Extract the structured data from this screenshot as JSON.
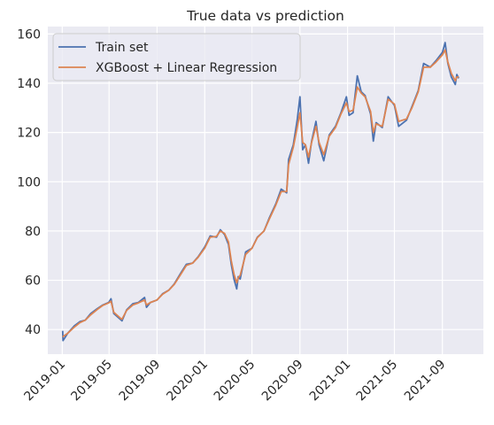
{
  "chart_data": {
    "type": "line",
    "title": "True data vs prediction",
    "xlabel": "",
    "ylabel": "",
    "xlim": [
      "2018-11-25",
      "2021-12-15"
    ],
    "ylim": [
      30,
      163
    ],
    "x_ticks": [
      "2019-01",
      "2019-05",
      "2019-09",
      "2020-01",
      "2020-05",
      "2020-09",
      "2021-01",
      "2021-05",
      "2021-09"
    ],
    "y_ticks": [
      40,
      60,
      80,
      100,
      120,
      140,
      160
    ],
    "grid": true,
    "legend_position": "top-left",
    "series": [
      {
        "name": "Train set",
        "color": "#4c72b0",
        "points": [
          [
            "2019-01-02",
            39.5
          ],
          [
            "2019-01-03",
            35.5
          ],
          [
            "2019-01-15",
            38.5
          ],
          [
            "2019-02-01",
            41.5
          ],
          [
            "2019-02-15",
            43.2
          ],
          [
            "2019-03-01",
            43.8
          ],
          [
            "2019-03-15",
            46.5
          ],
          [
            "2019-04-01",
            48.5
          ],
          [
            "2019-04-15",
            50.0
          ],
          [
            "2019-04-30",
            51.0
          ],
          [
            "2019-05-06",
            52.5
          ],
          [
            "2019-05-13",
            46.5
          ],
          [
            "2019-05-31",
            44.0
          ],
          [
            "2019-06-03",
            43.5
          ],
          [
            "2019-06-15",
            48.0
          ],
          [
            "2019-07-01",
            50.5
          ],
          [
            "2019-07-15",
            51.0
          ],
          [
            "2019-07-31",
            53.0
          ],
          [
            "2019-08-05",
            49.0
          ],
          [
            "2019-08-15",
            51.0
          ],
          [
            "2019-09-01",
            52.0
          ],
          [
            "2019-09-15",
            54.5
          ],
          [
            "2019-10-01",
            56.0
          ],
          [
            "2019-10-15",
            58.5
          ],
          [
            "2019-11-01",
            63.0
          ],
          [
            "2019-11-15",
            66.5
          ],
          [
            "2019-12-01",
            67.0
          ],
          [
            "2019-12-15",
            69.5
          ],
          [
            "2020-01-01",
            73.5
          ],
          [
            "2020-01-15",
            78.0
          ],
          [
            "2020-01-31",
            77.5
          ],
          [
            "2020-02-10",
            80.5
          ],
          [
            "2020-02-21",
            78.5
          ],
          [
            "2020-03-02",
            74.5
          ],
          [
            "2020-03-09",
            66.5
          ],
          [
            "2020-03-16",
            60.5
          ],
          [
            "2020-03-23",
            56.5
          ],
          [
            "2020-03-27",
            61.5
          ],
          [
            "2020-04-01",
            60.5
          ],
          [
            "2020-04-15",
            71.5
          ],
          [
            "2020-05-01",
            73.0
          ],
          [
            "2020-05-15",
            77.5
          ],
          [
            "2020-06-01",
            80.0
          ],
          [
            "2020-06-15",
            85.5
          ],
          [
            "2020-07-01",
            91.0
          ],
          [
            "2020-07-15",
            97.0
          ],
          [
            "2020-07-29",
            95.5
          ],
          [
            "2020-08-03",
            109.0
          ],
          [
            "2020-08-15",
            115.0
          ],
          [
            "2020-08-25",
            125.0
          ],
          [
            "2020-09-01",
            134.5
          ],
          [
            "2020-09-08",
            113.0
          ],
          [
            "2020-09-15",
            115.0
          ],
          [
            "2020-09-23",
            107.5
          ],
          [
            "2020-10-01",
            116.5
          ],
          [
            "2020-10-12",
            124.5
          ],
          [
            "2020-10-20",
            115.0
          ],
          [
            "2020-11-01",
            108.5
          ],
          [
            "2020-11-15",
            119.0
          ],
          [
            "2020-12-01",
            122.5
          ],
          [
            "2020-12-15",
            128.0
          ],
          [
            "2020-12-29",
            134.5
          ],
          [
            "2021-01-05",
            127.0
          ],
          [
            "2021-01-15",
            128.0
          ],
          [
            "2021-01-26",
            143.0
          ],
          [
            "2021-02-05",
            136.5
          ],
          [
            "2021-02-15",
            135.0
          ],
          [
            "2021-03-01",
            127.5
          ],
          [
            "2021-03-08",
            116.5
          ],
          [
            "2021-03-15",
            124.0
          ],
          [
            "2021-03-31",
            122.0
          ],
          [
            "2021-04-15",
            134.5
          ],
          [
            "2021-05-01",
            131.0
          ],
          [
            "2021-05-12",
            122.5
          ],
          [
            "2021-06-01",
            125.0
          ],
          [
            "2021-06-15",
            130.5
          ],
          [
            "2021-07-01",
            137.0
          ],
          [
            "2021-07-15",
            148.0
          ],
          [
            "2021-08-01",
            146.5
          ],
          [
            "2021-08-15",
            149.0
          ],
          [
            "2021-09-01",
            152.5
          ],
          [
            "2021-09-08",
            156.5
          ],
          [
            "2021-09-15",
            148.0
          ],
          [
            "2021-09-24",
            142.5
          ],
          [
            "2021-10-04",
            139.5
          ],
          [
            "2021-10-08",
            143.5
          ],
          [
            "2021-10-13",
            142.0
          ]
        ]
      },
      {
        "name": "XGBoost + Linear Regression",
        "color": "#dd8452",
        "points": [
          [
            "2019-01-02",
            37.0
          ],
          [
            "2019-01-15",
            38.5
          ],
          [
            "2019-02-01",
            41.0
          ],
          [
            "2019-02-15",
            42.8
          ],
          [
            "2019-03-01",
            43.8
          ],
          [
            "2019-03-15",
            46.0
          ],
          [
            "2019-04-01",
            48.2
          ],
          [
            "2019-04-15",
            49.8
          ],
          [
            "2019-04-30",
            50.8
          ],
          [
            "2019-05-06",
            51.5
          ],
          [
            "2019-05-13",
            47.0
          ],
          [
            "2019-05-31",
            44.5
          ],
          [
            "2019-06-03",
            44.2
          ],
          [
            "2019-06-15",
            47.8
          ],
          [
            "2019-07-01",
            50.0
          ],
          [
            "2019-07-15",
            50.8
          ],
          [
            "2019-07-31",
            52.0
          ],
          [
            "2019-08-05",
            50.0
          ],
          [
            "2019-08-15",
            51.0
          ],
          [
            "2019-09-01",
            52.0
          ],
          [
            "2019-09-15",
            54.3
          ],
          [
            "2019-10-01",
            56.0
          ],
          [
            "2019-10-15",
            58.3
          ],
          [
            "2019-11-01",
            62.5
          ],
          [
            "2019-11-15",
            66.0
          ],
          [
            "2019-12-01",
            67.0
          ],
          [
            "2019-12-15",
            69.3
          ],
          [
            "2020-01-01",
            73.0
          ],
          [
            "2020-01-15",
            77.5
          ],
          [
            "2020-01-31",
            77.8
          ],
          [
            "2020-02-10",
            80.0
          ],
          [
            "2020-02-21",
            79.0
          ],
          [
            "2020-03-02",
            75.5
          ],
          [
            "2020-03-09",
            68.0
          ],
          [
            "2020-03-16",
            62.5
          ],
          [
            "2020-03-23",
            59.0
          ],
          [
            "2020-03-27",
            61.0
          ],
          [
            "2020-04-01",
            62.0
          ],
          [
            "2020-04-15",
            70.5
          ],
          [
            "2020-05-01",
            73.0
          ],
          [
            "2020-05-15",
            77.3
          ],
          [
            "2020-06-01",
            80.0
          ],
          [
            "2020-06-15",
            85.0
          ],
          [
            "2020-07-01",
            90.5
          ],
          [
            "2020-07-15",
            96.0
          ],
          [
            "2020-07-29",
            96.0
          ],
          [
            "2020-08-03",
            107.0
          ],
          [
            "2020-08-15",
            114.0
          ],
          [
            "2020-08-25",
            122.0
          ],
          [
            "2020-09-01",
            128.0
          ],
          [
            "2020-09-08",
            116.0
          ],
          [
            "2020-09-15",
            115.0
          ],
          [
            "2020-09-23",
            110.0
          ],
          [
            "2020-10-01",
            116.0
          ],
          [
            "2020-10-12",
            122.5
          ],
          [
            "2020-10-20",
            116.0
          ],
          [
            "2020-11-01",
            111.0
          ],
          [
            "2020-11-15",
            118.5
          ],
          [
            "2020-12-01",
            122.0
          ],
          [
            "2020-12-15",
            127.5
          ],
          [
            "2020-12-29",
            132.0
          ],
          [
            "2021-01-05",
            128.5
          ],
          [
            "2021-01-15",
            129.0
          ],
          [
            "2021-01-26",
            138.5
          ],
          [
            "2021-02-05",
            136.0
          ],
          [
            "2021-02-15",
            134.5
          ],
          [
            "2021-03-01",
            128.5
          ],
          [
            "2021-03-08",
            120.0
          ],
          [
            "2021-03-15",
            123.5
          ],
          [
            "2021-03-31",
            122.5
          ],
          [
            "2021-04-15",
            133.5
          ],
          [
            "2021-05-01",
            131.5
          ],
          [
            "2021-05-12",
            124.5
          ],
          [
            "2021-06-01",
            125.5
          ],
          [
            "2021-06-15",
            130.0
          ],
          [
            "2021-07-01",
            136.5
          ],
          [
            "2021-07-15",
            146.5
          ],
          [
            "2021-08-01",
            146.5
          ],
          [
            "2021-08-15",
            148.5
          ],
          [
            "2021-09-01",
            151.5
          ],
          [
            "2021-09-08",
            153.5
          ],
          [
            "2021-09-15",
            148.5
          ],
          [
            "2021-09-24",
            144.0
          ],
          [
            "2021-10-04",
            141.0
          ],
          [
            "2021-10-08",
            142.5
          ],
          [
            "2021-10-13",
            142.5
          ]
        ]
      }
    ]
  }
}
